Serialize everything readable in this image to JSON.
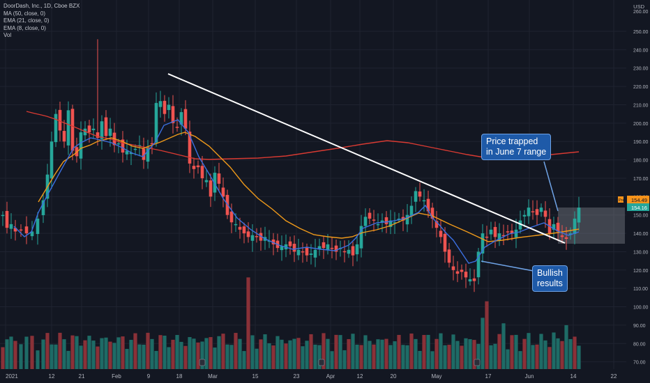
{
  "legend": {
    "symbol": "DoorDash, Inc., 1D, Cboe BZX",
    "ma50": "MA (50, close, 0)",
    "ema21": "EMA (21, close, 0)",
    "ema8": "EMA (8, close, 0)",
    "vol": "Vol"
  },
  "axis": {
    "currency": "USD",
    "top_price": "260.00",
    "y_ticks": [
      "250.00",
      "240.00",
      "230.00",
      "220.00",
      "210.00",
      "200.00",
      "190.00",
      "180.00",
      "170.00",
      "160.00",
      "150.00",
      "140.00",
      "130.00",
      "120.00",
      "110.00",
      "100.00",
      "90.00",
      "80.00",
      "70.00"
    ],
    "x_ticks": [
      "2021",
      "12",
      "21",
      "Feb",
      "9",
      "18",
      "Mar",
      "15",
      "23",
      "Apr",
      "12",
      "20",
      "May",
      "17",
      "Jun",
      "14",
      "22"
    ],
    "price_tag_pre_label": "Pre",
    "price_tag_pre": "154.49",
    "price_tag_last": "154.16"
  },
  "annotations": {
    "callout_top": [
      "Price trapped",
      "in June 7 range"
    ],
    "callout_bottom": [
      "Bullish",
      "results"
    ]
  },
  "colors": {
    "background": "#131722",
    "up": "#26a69a",
    "down": "#ef5350",
    "vol_up": "#1e6b66",
    "vol_down": "#8a3138",
    "ma50": "#d83a32",
    "ema21": "#f09a1a",
    "ema8": "#3b6fe0",
    "trendline": "#ffffff",
    "callout": "#1e5aa8"
  },
  "chart_data": {
    "type": "candlestick",
    "title": "DoorDash, Inc., 1D, Cboe BZX",
    "price_range": [
      68,
      262
    ],
    "grid": true,
    "series": [
      {
        "name": "MA (50, close, 0)",
        "values": [
          [
            38,
            160
          ],
          [
            50,
            163
          ],
          [
            59,
            165
          ],
          [
            67,
            167
          ],
          [
            79,
            171
          ],
          [
            91,
            176
          ],
          [
            106,
            182
          ],
          [
            125,
            190
          ],
          [
            140,
            196
          ],
          [
            160,
            200
          ],
          [
            175,
            205
          ],
          [
            200,
            210
          ],
          [
            230,
            216
          ],
          [
            255,
            222
          ],
          [
            280,
            228
          ],
          [
            300,
            229
          ],
          [
            330,
            228
          ],
          [
            370,
            227
          ],
          [
            410,
            224
          ],
          [
            450,
            218
          ],
          [
            490,
            212
          ],
          [
            520,
            207
          ],
          [
            555,
            202
          ],
          [
            585,
            205
          ],
          [
            615,
            211
          ],
          [
            645,
            217
          ],
          [
            670,
            222
          ],
          [
            700,
            227
          ],
          [
            740,
            226
          ],
          [
            790,
            222
          ],
          [
            830,
            218
          ]
        ]
      },
      {
        "name": "EMA (21, close, 0)",
        "values": [
          [
            55,
            290
          ],
          [
            67,
            270
          ],
          [
            79,
            250
          ],
          [
            91,
            232
          ],
          [
            106,
            222
          ],
          [
            116,
            213
          ],
          [
            130,
            208
          ],
          [
            140,
            203
          ],
          [
            160,
            198
          ],
          [
            175,
            203
          ],
          [
            190,
            210
          ],
          [
            205,
            213
          ],
          [
            230,
            204
          ],
          [
            255,
            193
          ],
          [
            265,
            190
          ],
          [
            280,
            196
          ],
          [
            300,
            210
          ],
          [
            330,
            240
          ],
          [
            350,
            265
          ],
          [
            370,
            285
          ],
          [
            390,
            300
          ],
          [
            410,
            317
          ],
          [
            430,
            328
          ],
          [
            450,
            337
          ],
          [
            470,
            340
          ],
          [
            490,
            342
          ],
          [
            505,
            340
          ],
          [
            520,
            334
          ],
          [
            540,
            330
          ],
          [
            560,
            324
          ],
          [
            580,
            315
          ],
          [
            600,
            306
          ],
          [
            620,
            310
          ],
          [
            645,
            322
          ],
          [
            670,
            333
          ],
          [
            700,
            347
          ],
          [
            720,
            345
          ],
          [
            745,
            341
          ],
          [
            770,
            338
          ],
          [
            800,
            334
          ],
          [
            830,
            329
          ]
        ]
      },
      {
        "name": "EMA (8, close, 0)",
        "values": [
          [
            20,
            325
          ],
          [
            35,
            340
          ],
          [
            45,
            333
          ],
          [
            55,
            305
          ],
          [
            67,
            282
          ],
          [
            79,
            260
          ],
          [
            91,
            238
          ],
          [
            106,
            212
          ],
          [
            116,
            205
          ],
          [
            130,
            198
          ],
          [
            140,
            200
          ],
          [
            160,
            205
          ],
          [
            175,
            212
          ],
          [
            190,
            220
          ],
          [
            205,
            225
          ],
          [
            222,
            205
          ],
          [
            235,
            180
          ],
          [
            255,
            172
          ],
          [
            270,
            190
          ],
          [
            285,
            225
          ],
          [
            300,
            250
          ],
          [
            320,
            285
          ],
          [
            340,
            313
          ],
          [
            360,
            330
          ],
          [
            380,
            343
          ],
          [
            400,
            352
          ],
          [
            420,
            358
          ],
          [
            440,
            355
          ],
          [
            460,
            358
          ],
          [
            480,
            360
          ],
          [
            500,
            352
          ],
          [
            510,
            342
          ],
          [
            520,
            328
          ],
          [
            540,
            320
          ],
          [
            560,
            318
          ],
          [
            580,
            314
          ],
          [
            600,
            305
          ],
          [
            610,
            295
          ],
          [
            620,
            313
          ],
          [
            630,
            323
          ],
          [
            640,
            335
          ],
          [
            650,
            345
          ],
          [
            660,
            360
          ],
          [
            672,
            378
          ],
          [
            682,
            375
          ],
          [
            695,
            355
          ],
          [
            710,
            346
          ],
          [
            730,
            336
          ],
          [
            745,
            333
          ],
          [
            760,
            327
          ],
          [
            780,
            320
          ],
          [
            800,
            332
          ],
          [
            815,
            338
          ],
          [
            830,
            333
          ]
        ]
      }
    ],
    "annotations": [
      "Price trapped in June 7 range",
      "Bullish results"
    ]
  }
}
